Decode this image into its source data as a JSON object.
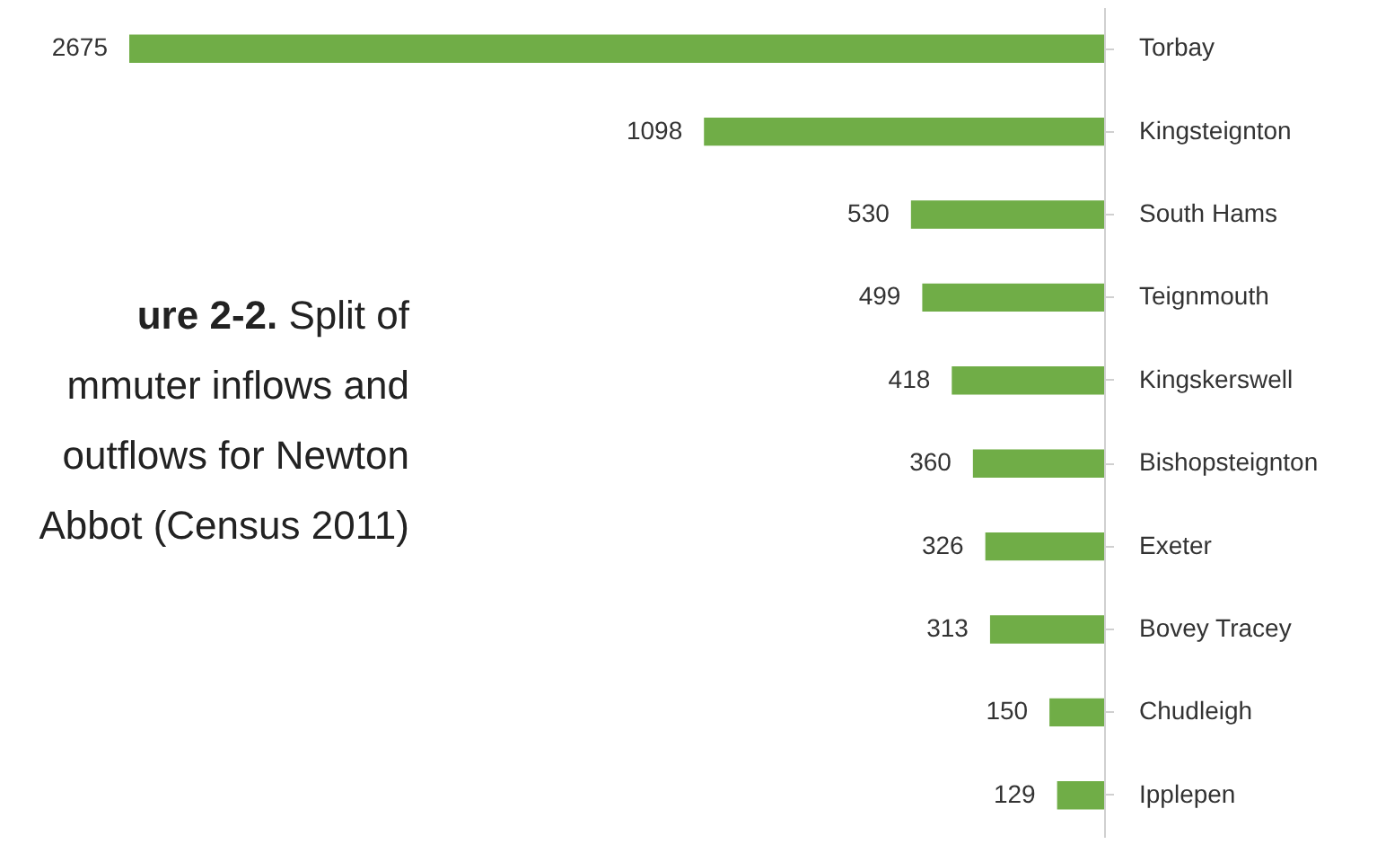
{
  "chart_data": {
    "type": "bar",
    "orientation": "horizontal",
    "title": "ure 2-2. Split of mmuter inflows and outflows for Newton Abbot (Census 2011)",
    "categories": [
      "Torbay",
      "Kingsteignton",
      "South Hams",
      "Teignmouth",
      "Kingskerswell",
      "Bishopsteignton",
      "Exeter",
      "Bovey Tracey",
      "Chudleigh",
      "Ipplepen"
    ],
    "values": [
      2675,
      1098,
      530,
      499,
      418,
      360,
      326,
      313,
      150,
      129
    ],
    "color": "#70ad47",
    "data_labels": true
  }
}
